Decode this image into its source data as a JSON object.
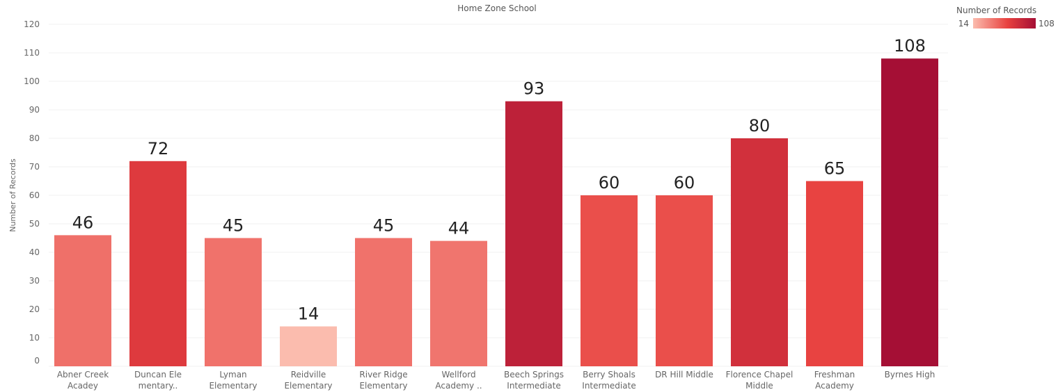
{
  "chart_data": {
    "type": "bar",
    "title": "Home Zone School",
    "ylabel": "Number of Records",
    "xlabel": "",
    "ylim": [
      0,
      120
    ],
    "yticks": [
      0,
      10,
      20,
      30,
      40,
      50,
      60,
      70,
      80,
      90,
      100,
      110,
      120
    ],
    "grid": true,
    "categories": [
      [
        "Abner Creek",
        "Acadey"
      ],
      [
        "Duncan Ele",
        "mentary.."
      ],
      [
        "Lyman",
        "Elementary"
      ],
      [
        "Reidville",
        "Elementary"
      ],
      [
        "River Ridge",
        "Elementary"
      ],
      [
        "Wellford",
        "Academy .."
      ],
      [
        "Beech Springs",
        "Intermediate"
      ],
      [
        "Berry Shoals",
        "Intermediate"
      ],
      [
        "DR Hill Middle"
      ],
      [
        "Florence Chapel",
        "Middle"
      ],
      [
        "Freshman",
        "Academy"
      ],
      [
        "Byrnes High"
      ]
    ],
    "values": [
      46,
      72,
      45,
      14,
      45,
      44,
      93,
      60,
      60,
      80,
      65,
      108
    ],
    "legend": {
      "title": "Number of Records",
      "min": 14,
      "max": 108,
      "placement": "top-right",
      "color_low": "#fbbcae",
      "color_high": "#a50f35"
    },
    "colors": {
      "gridline": "#f0f0f0",
      "axis_text": "#666666",
      "value_label": "#222222"
    }
  }
}
